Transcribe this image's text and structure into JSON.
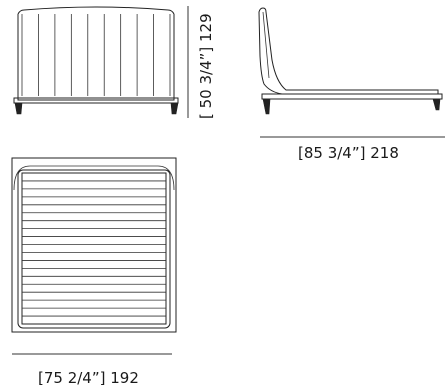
{
  "dimensions": {
    "height_label": "[ 50 3/4”] 129",
    "length_label": "[85 3/4”] 218",
    "width_label": "[75 2/4”] 192"
  },
  "views": {
    "front": {
      "headboard_panel_count": 9
    },
    "top": {
      "mattress_slat_count": 19
    }
  }
}
